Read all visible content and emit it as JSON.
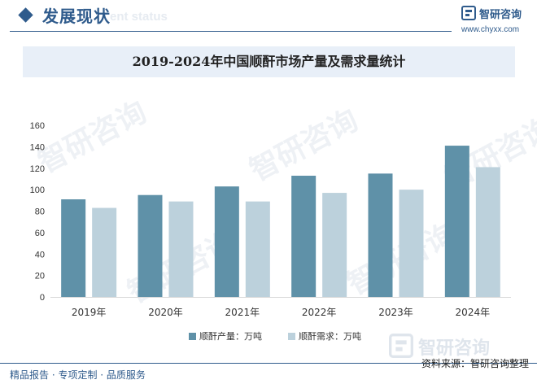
{
  "header": {
    "section_title": "发展现状",
    "section_watermark": "ent status"
  },
  "brand": {
    "name": "智研咨询",
    "url": "www.chyxx.com"
  },
  "chart_data": {
    "type": "bar",
    "title": "2019-2024年中国顺酐市场产量及需求量统计",
    "categories": [
      "2019年",
      "2020年",
      "2021年",
      "2022年",
      "2023年",
      "2024年"
    ],
    "series": [
      {
        "name": "顺酐产量：万吨",
        "color": "#5f91a8",
        "values": [
          91,
          95,
          103,
          113,
          115,
          141
        ]
      },
      {
        "name": "顺酐需求：万吨",
        "color": "#bcd1dc",
        "values": [
          83,
          89,
          89,
          97,
          100,
          121
        ]
      }
    ],
    "ylim": [
      0,
      160
    ],
    "yticks": [
      0,
      20,
      40,
      60,
      80,
      100,
      120,
      140,
      160
    ],
    "grid": false,
    "legend": "bottom"
  },
  "watermark": {
    "text": "智研咨询"
  },
  "footer": {
    "left": "精品报告 · 专项定制 · 品质服务",
    "right": "资料来源：智研咨询整理"
  }
}
